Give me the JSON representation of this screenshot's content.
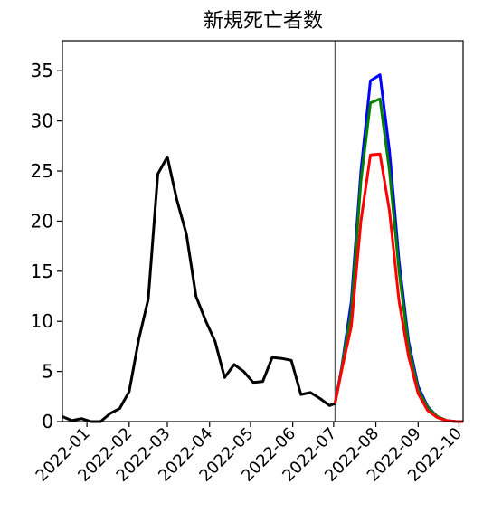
{
  "chart_data": {
    "type": "line",
    "title": "新規死亡者数",
    "xlabel": "",
    "ylabel": "",
    "grid": false,
    "xlim": [
      "2021-12-14",
      "2022-10-04"
    ],
    "ylim": [
      0,
      38
    ],
    "yticks": [
      0,
      5,
      10,
      15,
      20,
      25,
      30,
      35
    ],
    "xticks": [
      "2022-01",
      "2022-02",
      "2022-03",
      "2022-04",
      "2022-05",
      "2022-06",
      "2022-07",
      "2022-08",
      "2022-09",
      "2022-10"
    ],
    "vline": "2022-07-02",
    "colors": {
      "black": "#000000",
      "blue": "#0000ff",
      "green": "#008000",
      "red": "#ff0000",
      "vline": "#555555"
    },
    "series": [
      {
        "color": "black",
        "x": [
          "2021-12-14",
          "2021-12-21",
          "2021-12-28",
          "2022-01-04",
          "2022-01-11",
          "2022-01-18",
          "2022-01-25",
          "2022-02-01",
          "2022-02-08",
          "2022-02-15",
          "2022-02-22",
          "2022-03-01",
          "2022-03-08",
          "2022-03-15",
          "2022-03-22",
          "2022-03-29",
          "2022-04-05",
          "2022-04-12",
          "2022-04-19",
          "2022-04-26",
          "2022-05-03",
          "2022-05-10",
          "2022-05-17",
          "2022-05-24",
          "2022-05-31",
          "2022-06-07",
          "2022-06-14",
          "2022-06-21",
          "2022-06-28",
          "2022-07-02"
        ],
        "y": [
          0.5,
          0.1,
          0.3,
          0.0,
          0.0,
          0.8,
          1.3,
          3.0,
          8.2,
          12.2,
          24.7,
          26.4,
          22.1,
          18.7,
          12.5,
          10.1,
          8.0,
          4.4,
          5.7,
          5.0,
          3.9,
          4.0,
          6.4,
          6.3,
          6.1,
          2.7,
          2.9,
          2.3,
          1.6,
          1.8
        ]
      },
      {
        "color": "blue",
        "x": [
          "2022-07-02",
          "2022-07-07",
          "2022-07-14",
          "2022-07-21",
          "2022-07-28",
          "2022-08-04",
          "2022-08-11",
          "2022-08-18",
          "2022-08-25",
          "2022-09-01",
          "2022-09-08",
          "2022-09-15",
          "2022-09-22",
          "2022-09-29",
          "2022-10-04"
        ],
        "y": [
          1.8,
          5.5,
          12.0,
          25.0,
          34.0,
          34.6,
          27.0,
          16.0,
          8.0,
          3.5,
          1.5,
          0.5,
          0.1,
          0.0,
          0.0
        ]
      },
      {
        "color": "green",
        "x": [
          "2022-07-02",
          "2022-07-07",
          "2022-07-14",
          "2022-07-21",
          "2022-07-28",
          "2022-08-04",
          "2022-08-11",
          "2022-08-18",
          "2022-08-25",
          "2022-09-01",
          "2022-09-08",
          "2022-09-15",
          "2022-09-22",
          "2022-09-29",
          "2022-10-04"
        ],
        "y": [
          1.8,
          5.4,
          11.0,
          24.0,
          31.8,
          32.2,
          25.0,
          15.0,
          7.5,
          3.2,
          1.4,
          0.5,
          0.1,
          0.0,
          0.0
        ]
      },
      {
        "color": "red",
        "x": [
          "2022-07-02",
          "2022-07-07",
          "2022-07-14",
          "2022-07-21",
          "2022-07-28",
          "2022-08-04",
          "2022-08-11",
          "2022-08-18",
          "2022-08-25",
          "2022-09-01",
          "2022-09-08",
          "2022-09-15",
          "2022-09-22",
          "2022-09-29",
          "2022-10-04"
        ],
        "y": [
          1.8,
          5.2,
          9.5,
          20.0,
          26.6,
          26.7,
          21.0,
          12.0,
          6.5,
          2.8,
          1.1,
          0.4,
          0.1,
          0.0,
          0.0
        ]
      }
    ]
  }
}
